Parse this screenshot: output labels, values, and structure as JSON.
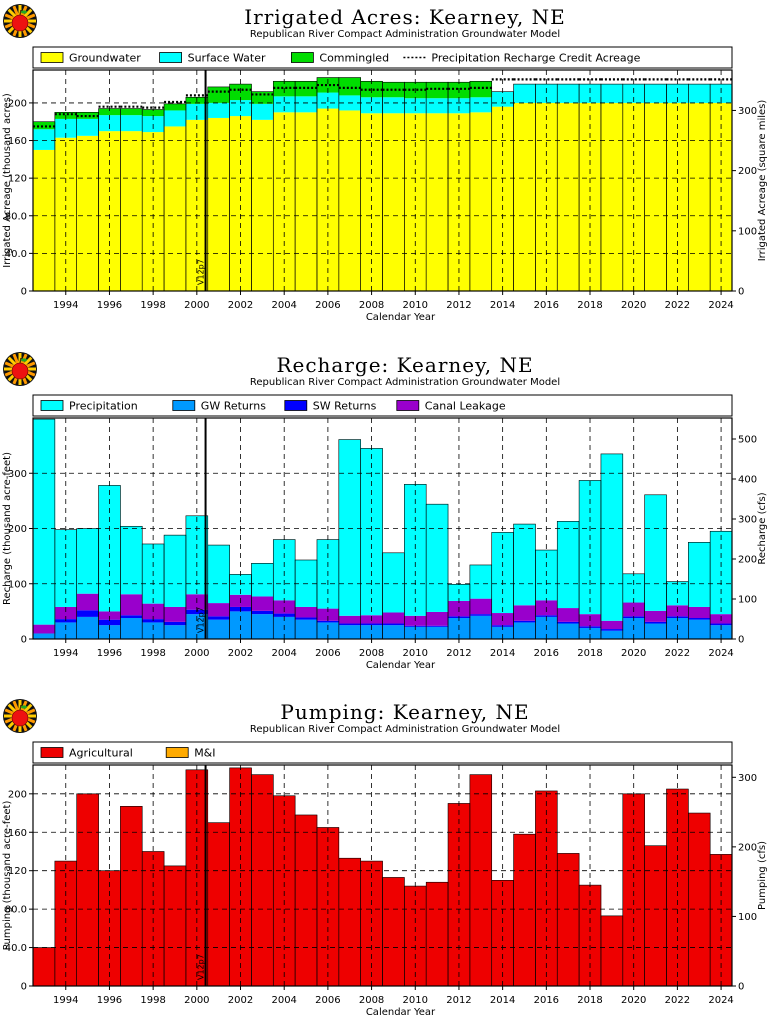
{
  "years": [
    1993,
    1994,
    1995,
    1996,
    1997,
    1998,
    1999,
    2000,
    2001,
    2002,
    2003,
    2004,
    2005,
    2006,
    2007,
    2008,
    2009,
    2010,
    2011,
    2012,
    2013,
    2014,
    2015,
    2016,
    2017,
    2018,
    2019,
    2020,
    2021,
    2022,
    2023,
    2024
  ],
  "x_ticks": [
    "1994",
    "1996",
    "1998",
    "2000",
    "2002",
    "2004",
    "2006",
    "2008",
    "2010",
    "2012",
    "2014",
    "2016",
    "2018",
    "2020",
    "2022",
    "2024"
  ],
  "xlabel": "Calendar Year",
  "marker_label": "V12p7",
  "marker_year": 2000.9,
  "icon": "apple-logo-icon",
  "chart_data": [
    {
      "type": "area",
      "title": "Irrigated Acres: Kearney, NE",
      "subtitle": "Republican River Compact Administration Groundwater Model",
      "ylabel": "Irrigated Acreage (thousand acres)",
      "y2label": "Irrigated Acreage (square miles)",
      "ylim": [
        0,
        235
      ],
      "y_ticks": [
        "0",
        "40.0",
        "80.0",
        "120",
        "160",
        "200"
      ],
      "y_tick_values": [
        0,
        40,
        80,
        120,
        160,
        200
      ],
      "y2_ticks": [
        "0",
        "100",
        "200",
        "300"
      ],
      "y2_tick_values": [
        0,
        64,
        128,
        192
      ],
      "grid": true,
      "legend_position": "top",
      "series": [
        {
          "name": "Groundwater",
          "color": "#ffff00",
          "values": [
            150,
            163,
            165,
            170,
            170,
            169,
            175,
            182,
            184,
            186,
            182,
            190,
            190,
            194,
            192,
            189,
            189,
            189,
            189,
            189,
            190,
            196,
            200,
            200,
            200,
            200,
            200,
            200,
            200,
            200,
            200,
            200
          ]
        },
        {
          "name": "Surface Water",
          "color": "#00ffff",
          "values": [
            22,
            20,
            18,
            17,
            17,
            17,
            17,
            17,
            16,
            17,
            17,
            17,
            17,
            17,
            16,
            17,
            17,
            16,
            16,
            16,
            16,
            16,
            20,
            20,
            20,
            20,
            20,
            20,
            20,
            20,
            20,
            20
          ]
        },
        {
          "name": "Commingled",
          "color": "#00dd00",
          "values": [
            8,
            7,
            7,
            7,
            7,
            7,
            7,
            7,
            17,
            17,
            13,
            16,
            16,
            16,
            19,
            17,
            16,
            17,
            17,
            17,
            17,
            0,
            0,
            0,
            0,
            0,
            0,
            0,
            0,
            0,
            0,
            0
          ]
        }
      ],
      "line_series": {
        "name": "Precipitation Recharge Credit Acreage",
        "style": "dotted",
        "values": [
          175,
          188,
          186,
          196,
          196,
          195,
          201,
          208,
          212,
          214,
          209,
          216,
          216,
          219,
          216,
          214,
          214,
          214,
          215,
          215,
          216,
          225,
          225,
          225,
          225,
          225,
          225,
          225,
          225,
          225,
          225,
          225
        ]
      }
    },
    {
      "type": "area",
      "title": "Recharge: Kearney, NE",
      "subtitle": "Republican River Compact Administration Groundwater Model",
      "ylabel": "Recharge (thousand acre-feet)",
      "y2label": "Recharge (cfs)",
      "ylim": [
        0,
        400
      ],
      "y_ticks": [
        "0",
        "100",
        "200",
        "300"
      ],
      "y_tick_values": [
        0,
        100,
        200,
        300
      ],
      "y2_ticks": [
        "0",
        "100",
        "200",
        "300",
        "400",
        "500"
      ],
      "y2_tick_values": [
        0,
        72.4,
        144.8,
        217.2,
        289.6,
        362
      ],
      "grid": true,
      "legend_position": "top",
      "series": [
        {
          "name": "GW Returns",
          "color": "#0099ff",
          "values": [
            10,
            30,
            40,
            25,
            38,
            30,
            25,
            45,
            35,
            50,
            45,
            40,
            35,
            30,
            25,
            25,
            25,
            22,
            22,
            38,
            42,
            22,
            30,
            40,
            28,
            20,
            15,
            38,
            28,
            38,
            35,
            25
          ]
        },
        {
          "name": "SW Returns",
          "color": "#0000ff",
          "values": [
            0,
            6,
            12,
            10,
            5,
            6,
            6,
            8,
            6,
            8,
            6,
            6,
            4,
            3,
            3,
            3,
            3,
            2,
            2,
            3,
            3,
            3,
            3,
            3,
            3,
            3,
            3,
            3,
            3,
            3,
            3,
            3
          ]
        },
        {
          "name": "Canal Leakage",
          "color": "#9900cc",
          "values": [
            16,
            22,
            30,
            15,
            38,
            28,
            27,
            28,
            24,
            22,
            26,
            24,
            19,
            22,
            14,
            15,
            20,
            18,
            25,
            28,
            28,
            22,
            28,
            27,
            25,
            22,
            15,
            25,
            20,
            20,
            20,
            17
          ]
        },
        {
          "name": "Precipitation",
          "color": "#00ffff",
          "values": [
            372,
            140,
            118,
            228,
            123,
            108,
            130,
            142,
            105,
            37,
            60,
            110,
            85,
            125,
            319,
            302,
            108,
            238,
            195,
            30,
            61,
            146,
            147,
            91,
            157,
            242,
            302,
            52,
            210,
            43,
            117,
            150
          ]
        }
      ],
      "stack_order": [
        "GW Returns",
        "SW Returns",
        "Canal Leakage",
        "Precipitation"
      ]
    },
    {
      "type": "bar",
      "title": "Pumping: Kearney, NE",
      "subtitle": "Republican River Compact Administration Groundwater Model",
      "ylabel": "Pumping (thousand acre-feet)",
      "y2label": "Pumping (cfs)",
      "ylim": [
        0,
        230
      ],
      "y_ticks": [
        "0",
        "40.0",
        "80.0",
        "120",
        "160",
        "200"
      ],
      "y_tick_values": [
        0,
        40,
        80,
        120,
        160,
        200
      ],
      "y2_ticks": [
        "0",
        "100",
        "200",
        "300"
      ],
      "y2_tick_values": [
        0,
        72.4,
        144.8,
        217.2
      ],
      "grid": true,
      "legend_position": "top",
      "series": [
        {
          "name": "Agricultural",
          "color": "#ee0000",
          "values": [
            40,
            130,
            200,
            120,
            187,
            140,
            125,
            225,
            170,
            227,
            220,
            198,
            178,
            165,
            133,
            130,
            113,
            104,
            108,
            190,
            220,
            110,
            158,
            203,
            138,
            105,
            73,
            200,
            146,
            205,
            180,
            137
          ]
        },
        {
          "name": "M&I",
          "color": "#ffaa00",
          "values": [
            0,
            0,
            0,
            0,
            0,
            0,
            0,
            0,
            0,
            0,
            0,
            0,
            0,
            0,
            0,
            0,
            0,
            0,
            0,
            0,
            0,
            0,
            0,
            0,
            0,
            0,
            0,
            0,
            0,
            0,
            0,
            0
          ]
        }
      ]
    }
  ]
}
